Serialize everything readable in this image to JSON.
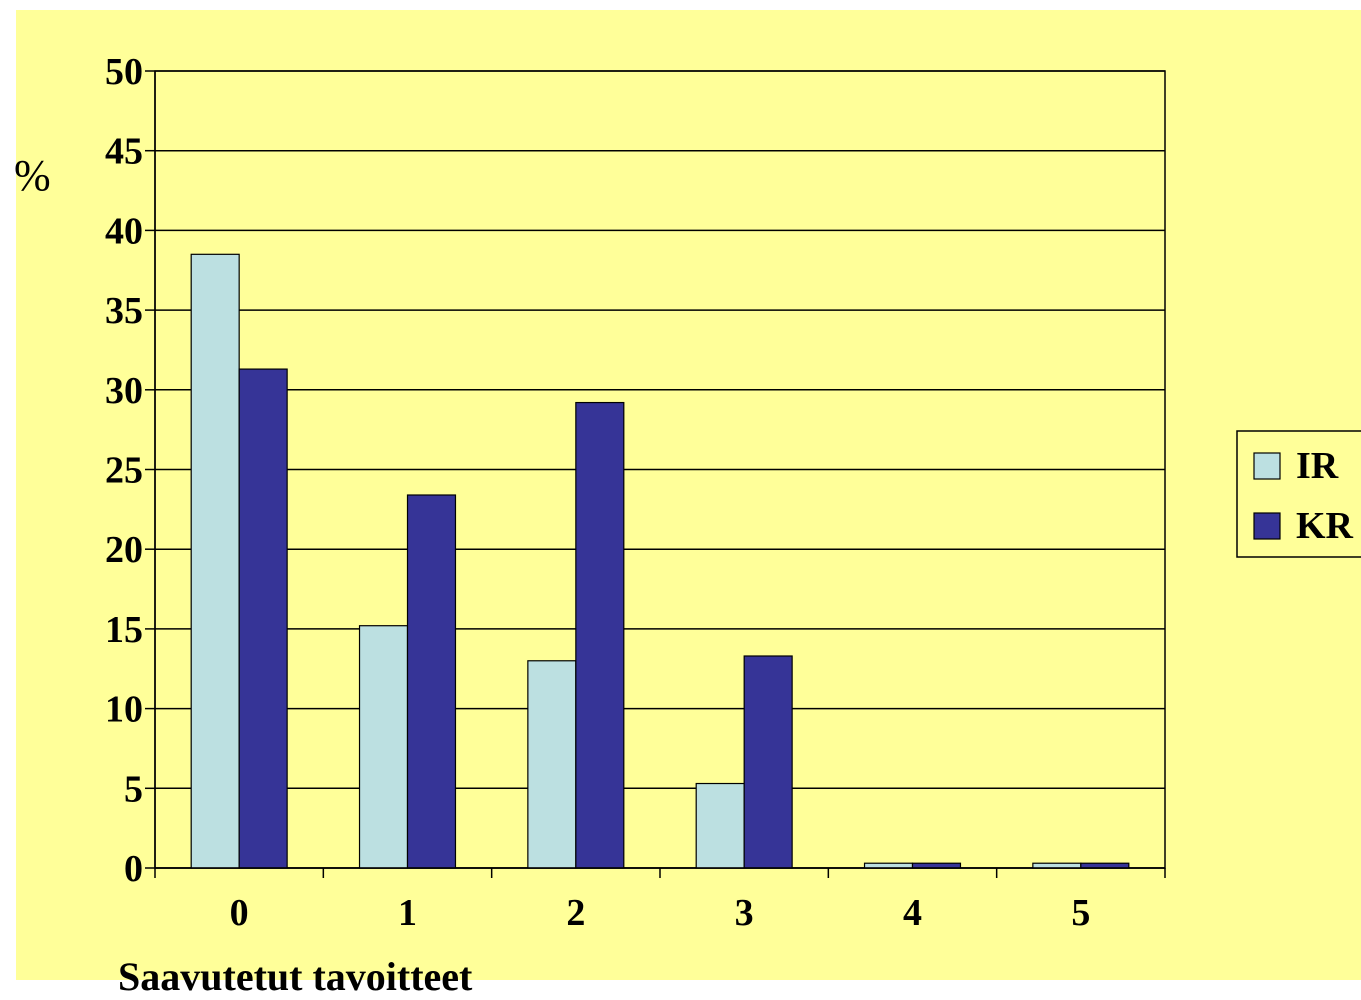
{
  "chart_data": {
    "type": "bar",
    "categories": [
      "0",
      "1",
      "2",
      "3",
      "4",
      "5"
    ],
    "series": [
      {
        "name": "IR",
        "values": [
          38.5,
          15.2,
          13.0,
          5.3,
          0.3,
          0.3
        ]
      },
      {
        "name": "KR",
        "values": [
          31.3,
          23.4,
          29.2,
          13.3,
          0.3,
          0.3
        ]
      }
    ],
    "title": "",
    "xlabel": "Saavutetut tavoitteet",
    "ylabel": "%",
    "ylim": [
      0,
      50
    ],
    "yticks": [
      "0",
      "5",
      "10",
      "15",
      "20",
      "25",
      "30",
      "35",
      "40",
      "45",
      "50"
    ],
    "grid": true,
    "legend_position": "right"
  },
  "colors": {
    "background": "#FFFF99",
    "plot_area": "#FFFF99",
    "series_ir": "#BCE0E1",
    "series_kr": "#363497",
    "gridline": "#000000"
  }
}
